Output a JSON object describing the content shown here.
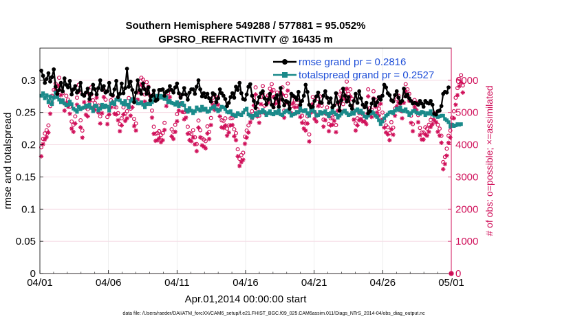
{
  "chart_data": {
    "type": "line",
    "title_line1": "Southern Hemisphere 549288 / 577881 = 95.052%",
    "title_line2": "GPSRO_REFRACTIVITY @ 16435 m",
    "xlabel": "Apr.01,2014 00:00:00 start",
    "ylabel": "rmse and totalspread",
    "ylabel_right": "# of obs: o=possible; ×=assimilated",
    "footer": "data file: /Users/raeder/DAI/ATM_forcXX/CAM6_setup/f.e21.FHIST_BGC.f09_025.CAM6assim.011/Diags_NTrS_2014-04/obs_diag_output.nc",
    "x_ticks": [
      "04/01",
      "04/06",
      "04/11",
      "04/16",
      "04/21",
      "04/26",
      "05/01"
    ],
    "xlim_days": [
      0,
      30
    ],
    "ylim_left": [
      0,
      0.35
    ],
    "yticks_left": [
      "0",
      "0.05",
      "0.1",
      "0.15",
      "0.2",
      "0.25",
      "0.3"
    ],
    "ylim_right": [
      0,
      7000
    ],
    "yticks_right": [
      "0",
      "1000",
      "2000",
      "3000",
      "4000",
      "5000",
      "6000"
    ],
    "legend": [
      {
        "name": "rmse grand pr = 0.2816",
        "color": "#000000"
      },
      {
        "name": "totalspread grand pr = 0.2527",
        "color": "#1a8a8a"
      }
    ],
    "colors": {
      "rmse": "#000000",
      "spread": "#1a8a8a",
      "obs": "#d0105a"
    },
    "rmse": [
      0.315,
      0.307,
      0.296,
      0.302,
      0.311,
      0.298,
      0.305,
      0.317,
      0.29,
      0.279,
      0.285,
      0.296,
      0.283,
      0.303,
      0.293,
      0.289,
      0.299,
      0.278,
      0.286,
      0.291,
      0.281,
      0.284,
      0.296,
      0.278,
      0.276,
      0.281,
      0.287,
      0.271,
      0.279,
      0.293,
      0.286,
      0.278,
      0.288,
      0.3,
      0.285,
      0.291,
      0.281,
      0.283,
      0.296,
      0.278,
      0.277,
      0.286,
      0.299,
      0.274,
      0.279,
      0.295,
      0.28,
      0.288,
      0.318,
      0.29,
      0.298,
      0.285,
      0.266,
      0.281,
      0.3,
      0.285,
      0.279,
      0.295,
      0.286,
      0.279,
      0.289,
      0.269,
      0.276,
      0.284,
      0.268,
      0.27,
      0.285,
      0.285,
      0.286,
      0.276,
      0.282,
      0.284,
      0.291,
      0.285,
      0.281,
      0.289,
      0.295,
      0.28,
      0.273,
      0.278,
      0.288,
      0.278,
      0.27,
      0.281,
      0.286,
      0.286,
      0.279,
      0.29,
      0.3,
      0.286,
      0.275,
      0.28,
      0.274,
      0.279,
      0.272,
      0.267,
      0.28,
      0.278,
      0.266,
      0.272,
      0.286,
      0.28,
      0.276,
      0.271,
      0.26,
      0.265,
      0.274,
      0.28,
      0.273,
      0.29,
      0.285,
      0.296,
      0.28,
      0.271,
      0.27,
      0.278,
      0.29,
      0.294,
      0.276,
      0.268,
      0.257,
      0.265,
      0.274,
      0.28,
      0.283,
      0.272,
      0.263,
      0.27,
      0.279,
      0.262,
      0.258,
      0.272,
      0.277,
      0.259,
      0.288,
      0.27,
      0.261,
      0.268,
      0.266,
      0.256,
      0.279,
      0.276,
      0.274,
      0.27,
      0.282,
      0.262,
      0.268,
      0.276,
      0.293,
      0.282,
      0.262,
      0.258,
      0.259,
      0.268,
      0.275,
      0.281,
      0.266,
      0.265,
      0.276,
      0.283,
      0.273,
      0.265,
      0.272,
      0.258,
      0.261,
      0.28,
      0.266,
      0.253,
      0.269,
      0.287,
      0.276,
      0.267,
      0.274,
      0.261,
      0.256,
      0.268,
      0.279,
      0.265,
      0.283,
      0.272,
      0.262,
      0.258,
      0.265,
      0.249,
      0.252,
      0.264,
      0.271,
      0.261,
      0.266,
      0.274,
      0.27,
      0.276,
      0.293,
      0.289,
      0.28,
      0.277,
      0.269,
      0.267,
      0.277,
      0.283,
      0.273,
      0.265,
      0.268,
      0.287,
      0.275,
      0.278,
      0.272,
      0.268,
      0.264,
      0.265,
      0.264,
      0.262,
      0.268,
      0.264,
      0.259,
      0.268,
      0.265,
      0.264,
      0.268,
      0.262,
      0.248,
      0.247,
      0.252,
      0.253,
      0.26,
      0.279,
      0.282,
      0.281,
      0.289
    ],
    "spread": [
      0.276,
      0.28,
      0.272,
      0.277,
      0.266,
      0.275,
      0.263,
      0.273,
      0.281,
      0.274,
      0.27,
      0.266,
      0.269,
      0.264,
      0.261,
      0.262,
      0.267,
      0.263,
      0.256,
      0.254,
      0.251,
      0.259,
      0.255,
      0.257,
      0.258,
      0.261,
      0.259,
      0.262,
      0.257,
      0.252,
      0.261,
      0.26,
      0.253,
      0.256,
      0.262,
      0.258,
      0.261,
      0.259,
      0.253,
      0.264,
      0.266,
      0.263,
      0.27,
      0.273,
      0.269,
      0.265,
      0.263,
      0.268,
      0.262,
      0.258,
      0.268,
      0.271,
      0.269,
      0.267,
      0.264,
      0.264,
      0.266,
      0.262,
      0.258,
      0.263,
      0.264,
      0.263,
      0.266,
      0.275,
      0.272,
      0.276,
      0.273,
      0.276,
      0.273,
      0.271,
      0.274,
      0.266,
      0.268,
      0.265,
      0.264,
      0.262,
      0.266,
      0.26,
      0.263,
      0.265,
      0.261,
      0.254,
      0.251,
      0.257,
      0.253,
      0.249,
      0.252,
      0.258,
      0.255,
      0.253,
      0.259,
      0.254,
      0.256,
      0.251,
      0.252,
      0.256,
      0.258,
      0.26,
      0.255,
      0.252,
      0.254,
      0.259,
      0.258,
      0.255,
      0.251,
      0.25,
      0.252,
      0.247,
      0.246,
      0.244,
      0.249,
      0.247,
      0.246,
      0.25,
      0.254,
      0.256,
      0.247,
      0.245,
      0.242,
      0.245,
      0.249,
      0.246,
      0.251,
      0.25,
      0.254,
      0.251,
      0.246,
      0.249,
      0.252,
      0.248,
      0.247,
      0.251,
      0.249,
      0.253,
      0.247,
      0.246,
      0.25,
      0.252,
      0.253,
      0.25,
      0.245,
      0.247,
      0.248,
      0.251,
      0.25,
      0.257,
      0.253,
      0.252,
      0.254,
      0.249,
      0.245,
      0.253,
      0.257,
      0.251,
      0.245,
      0.246,
      0.251,
      0.248,
      0.25,
      0.252,
      0.248,
      0.244,
      0.249,
      0.253,
      0.25,
      0.247,
      0.242,
      0.245,
      0.248,
      0.251,
      0.253,
      0.249,
      0.246,
      0.247,
      0.25,
      0.248,
      0.253,
      0.255,
      0.25,
      0.253,
      0.249,
      0.244,
      0.242,
      0.245,
      0.248,
      0.251,
      0.249,
      0.245,
      0.243,
      0.238,
      0.232,
      0.236,
      0.241,
      0.245,
      0.247,
      0.25,
      0.251,
      0.249,
      0.253,
      0.256,
      0.254,
      0.258,
      0.253,
      0.252,
      0.255,
      0.251,
      0.246,
      0.249,
      0.252,
      0.253,
      0.25,
      0.249,
      0.248,
      0.251,
      0.25,
      0.246,
      0.249,
      0.248,
      0.252,
      0.247,
      0.245,
      0.247,
      0.243,
      0.244,
      0.245,
      0.245,
      0.24,
      0.238,
      0.235,
      0.228,
      0.231,
      0.229,
      0.23,
      0.232,
      0.231,
      0.232
    ],
    "obs_possible": [
      3920,
      4180,
      4350,
      4450,
      4600,
      5200,
      5520,
      5700,
      5900,
      5820,
      6080,
      5760,
      5600,
      5280,
      5520,
      5400,
      5180,
      4720,
      4620,
      4880,
      5460,
      5860,
      4760,
      4440,
      5540,
      5150,
      5100,
      5570,
      5780,
      5380,
      5300,
      5680,
      5220,
      4880,
      5200,
      5700,
      5400,
      4860,
      5160,
      5380,
      5520,
      5180,
      5160,
      4980,
      4640,
      4820,
      5160,
      4960,
      5040,
      5450,
      5120,
      5380,
      4800,
      4660,
      5620,
      5880,
      6080,
      6020,
      5560,
      5940,
      5800,
      5520,
      5060,
      4560,
      4340,
      4360,
      4420,
      4300,
      4360,
      4680,
      5420,
      5600,
      5700,
      4480,
      4400,
      4620,
      4950,
      5280,
      5500,
      5240,
      5010,
      5060,
      4560,
      4360,
      4330,
      4450,
      4230,
      4020,
      4750,
      4450,
      4200,
      4160,
      4110,
      4570,
      4400,
      4830,
      5460,
      5300,
      5480,
      5460,
      5100,
      4760,
      4740,
      4820,
      4500,
      4600,
      4820,
      4830,
      4480,
      4360,
      3860,
      3560,
      3680,
      3750,
      4250,
      4440,
      4600,
      4920,
      5040,
      5440,
      5780,
      5100,
      4900,
      5480,
      5820,
      5210,
      5460,
      5530,
      5740,
      5880,
      5700,
      5500,
      5620,
      5490,
      5620,
      5780,
      5060,
      5520,
      5900,
      5240,
      5200,
      5510,
      5380,
      5210,
      5390,
      5080,
      4900,
      4720,
      4660,
      4880,
      4320,
      5220,
      5480,
      5020,
      4940,
      5420,
      5500,
      5210,
      4780,
      4980,
      5160,
      4640,
      4820,
      4840,
      4960,
      4610,
      5280,
      5560,
      5680,
      5260,
      5640,
      5960,
      5580,
      5720,
      5420,
      5000,
      4660,
      4820,
      4980,
      5020,
      4940,
      4940,
      4860,
      5720,
      5140,
      5080,
      5660,
      5400,
      5220,
      5120,
      5490,
      5000,
      4750,
      4600,
      4540,
      4360,
      4700,
      4530,
      5120,
      5410,
      5520,
      5280,
      5040,
      5520,
      5880,
      5720,
      5580,
      4900,
      4640,
      5390,
      5300,
      4920,
      4520,
      4380,
      4380,
      4540,
      4500,
      4620,
      4770,
      4860,
      4980,
      4920,
      4620,
      4500,
      4280,
      3460,
      3620,
      3880,
      4280,
      4440,
      4840,
      5040,
      5460,
      5760,
      6040,
      6160,
      5840
    ],
    "obs_assim": [
      3640,
      4020,
      4160,
      4240,
      4380,
      4960,
      5300,
      5480,
      5680,
      5600,
      5840,
      5540,
      5380,
      5060,
      5300,
      5180,
      4960,
      4500,
      4400,
      4660,
      5240,
      5640,
      4540,
      4220,
      5320,
      4930,
      4880,
      5350,
      5560,
      5160,
      5080,
      5460,
      5000,
      4660,
      4980,
      5480,
      5180,
      4640,
      4940,
      5160,
      5300,
      4960,
      4940,
      4760,
      4420,
      4600,
      4940,
      4740,
      4820,
      5230,
      4900,
      5160,
      4580,
      4440,
      5400,
      5660,
      5860,
      5800,
      5340,
      5720,
      5580,
      5300,
      4840,
      4340,
      4120,
      4140,
      4200,
      4080,
      4140,
      4460,
      5200,
      5380,
      5480,
      4260,
      4180,
      4400,
      4730,
      5060,
      5280,
      5020,
      4790,
      4840,
      4340,
      4140,
      4110,
      4230,
      4010,
      3800,
      4530,
      4230,
      3980,
      3940,
      3890,
      4350,
      4180,
      4610,
      5240,
      5080,
      5260,
      5240,
      4880,
      4540,
      4520,
      4600,
      4280,
      4380,
      4600,
      4610,
      4260,
      4140,
      3640,
      3340,
      3460,
      3530,
      4030,
      4220,
      4380,
      4700,
      4820,
      5220,
      5560,
      4880,
      4680,
      5260,
      5600,
      4990,
      5240,
      5310,
      5520,
      5660,
      5480,
      5280,
      5400,
      5270,
      5400,
      5560,
      4840,
      5300,
      5680,
      5020,
      4980,
      5290,
      5160,
      4990,
      5170,
      4860,
      4680,
      4500,
      4440,
      4660,
      4100,
      5000,
      5260,
      4800,
      4720,
      5200,
      5280,
      4990,
      4560,
      4760,
      4940,
      4420,
      4600,
      4620,
      4740,
      4390,
      5060,
      5340,
      5460,
      5040,
      5420,
      5740,
      5360,
      5500,
      5200,
      4780,
      4440,
      4600,
      4760,
      4800,
      4720,
      4720,
      4640,
      5500,
      4920,
      4860,
      5440,
      5180,
      5000,
      4900,
      5270,
      4780,
      4530,
      4380,
      4320,
      4140,
      4480,
      4310,
      4900,
      5190,
      5300,
      5060,
      4820,
      5300,
      5660,
      5500,
      5360,
      4680,
      4420,
      5170,
      5080,
      4700,
      4300,
      4160,
      4160,
      4320,
      4280,
      4400,
      4550,
      4640,
      4760,
      4700,
      4400,
      4280,
      4060,
      3240,
      3400,
      3660,
      4060,
      4220,
      4620,
      4820,
      5240,
      5540,
      5820,
      5940,
      5620
    ],
    "final_obs_possible": 0,
    "final_obs_assim": 0
  }
}
